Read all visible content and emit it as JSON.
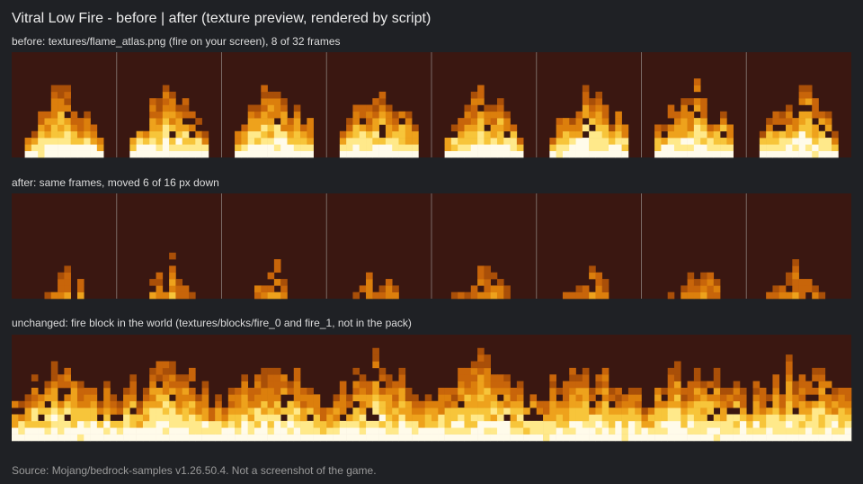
{
  "header": {
    "title": "Vitral Low Fire - before | after  (texture preview, rendered by script)"
  },
  "sections": [
    {
      "label": "before: textures/flame_atlas.png (fire on your screen), 8 of 32 frames"
    },
    {
      "label": "after: same frames, moved 6 of 16 px down"
    },
    {
      "label": "unchanged: fire block in the world (textures/blocks/fire_0 and fire_1, not in the pack)"
    }
  ],
  "footer": "Source: Mojang/bedrock-samples v1.26.50.4. Not a screenshot of the game."
}
